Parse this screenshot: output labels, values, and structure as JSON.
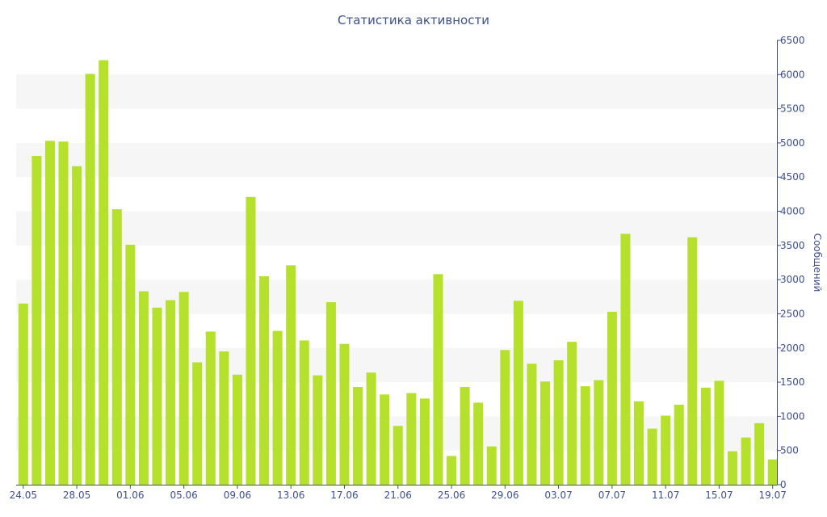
{
  "chart_data": {
    "type": "bar",
    "title": "Статистика активности",
    "ylabel": "Сообщений",
    "xlabel": "",
    "ylim": [
      0,
      6500
    ],
    "y_ticks": [
      0,
      500,
      1000,
      1500,
      2000,
      2500,
      3000,
      3500,
      4000,
      4500,
      5000,
      5500,
      6000,
      6500
    ],
    "y_axis_position": "right",
    "grid": "alternating horizontal bands",
    "bar_color": "#b5e02b",
    "axis_color": "#3e4f8c",
    "band_color": "#f6f6f6",
    "x_tick_labels": [
      "24.05",
      "28.05",
      "01.06",
      "05.06",
      "09.06",
      "13.06",
      "17.06",
      "21.06",
      "25.06",
      "29.06",
      "03.07",
      "07.07",
      "11.07",
      "15.07",
      "19.07"
    ],
    "x_tick_every": 4,
    "values": [
      2650,
      4810,
      5030,
      5020,
      4660,
      6010,
      6210,
      4030,
      3510,
      2830,
      2590,
      2700,
      2820,
      1790,
      2240,
      1950,
      1610,
      4210,
      3050,
      2250,
      3210,
      2110,
      1600,
      2670,
      2060,
      1430,
      1640,
      1320,
      860,
      1340,
      1260,
      3080,
      420,
      1430,
      1200,
      560,
      1970,
      2690,
      1770,
      1510,
      1820,
      2090,
      1440,
      1530,
      2530,
      3670,
      1220,
      820,
      1010,
      1170,
      3620,
      1420,
      1520,
      490,
      690,
      900,
      370
    ]
  }
}
